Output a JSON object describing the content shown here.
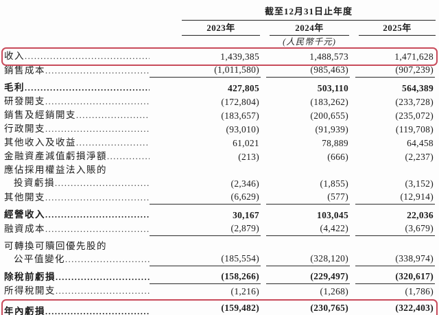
{
  "header": {
    "period_title": "截至12月31日止年度",
    "columns": [
      "2023年",
      "2024年",
      "2025年"
    ],
    "currency_note": "(人民幣千元)"
  },
  "colors": {
    "highlight_border": "#c84a5a",
    "text": "#1b1b1b",
    "rule": "#222222"
  },
  "table": {
    "rows": [
      {
        "label": "收入",
        "values": [
          "1,439,385",
          "1,488,573",
          "1,471,628"
        ],
        "boxed": true
      },
      {
        "label": "銷售成本",
        "values": [
          "(1,011,580)",
          "(985,463)",
          "(907,239)"
        ],
        "rule_below": "single"
      },
      {
        "label": "毛利",
        "values": [
          "427,805",
          "503,110",
          "564,389"
        ],
        "emphasis": true,
        "spacing_before": true
      },
      {
        "label": "研發開支",
        "values": [
          "(172,804)",
          "(183,262)",
          "(233,728)"
        ]
      },
      {
        "label": "銷售及經銷開支",
        "values": [
          "(183,657)",
          "(200,655)",
          "(235,072)"
        ]
      },
      {
        "label": "行政開支",
        "values": [
          "(93,010)",
          "(91,939)",
          "(119,708)"
        ]
      },
      {
        "label": "其他收入及收益",
        "values": [
          "61,021",
          "78,889",
          "64,458"
        ]
      },
      {
        "label": "金融資產減值虧損淨額",
        "values": [
          "(213)",
          "(666)",
          "(2,237)"
        ]
      },
      {
        "label": "應佔採用權益法入賬的",
        "label2": "投資虧損",
        "values": [
          "(2,346)",
          "(1,855)",
          "(3,152)"
        ]
      },
      {
        "label": "其他開支",
        "values": [
          "(6,629)",
          "(577)",
          "(12,914)"
        ],
        "rule_below": "single"
      },
      {
        "label": "經營收入",
        "values": [
          "30,167",
          "103,045",
          "22,036"
        ],
        "emphasis": true,
        "spacing_before": true
      },
      {
        "label": "融資成本",
        "values": [
          "(2,879)",
          "(4,422)",
          "(3,679)"
        ],
        "rule_below": "single"
      },
      {
        "label": "可轉換可贖回優先股的",
        "label2": "公平值變化",
        "values": [
          "(185,554)",
          "(328,120)",
          "(338,974)"
        ],
        "rule_below": "single",
        "spacing_before": true
      },
      {
        "label": "除稅前虧損",
        "values": [
          "(158,266)",
          "(229,497)",
          "(320,617)"
        ],
        "emphasis": true,
        "rule_below": "single",
        "spacing_before": true
      },
      {
        "label": "所得稅開支",
        "values": [
          "(1,216)",
          "(1,268)",
          "(1,786)"
        ]
      },
      {
        "label": "年內虧損",
        "values": [
          "(159,482)",
          "(230,765)",
          "(322,403)"
        ],
        "emphasis": true,
        "boxed": true,
        "rule_below": "double",
        "spacing_before": true
      }
    ]
  }
}
